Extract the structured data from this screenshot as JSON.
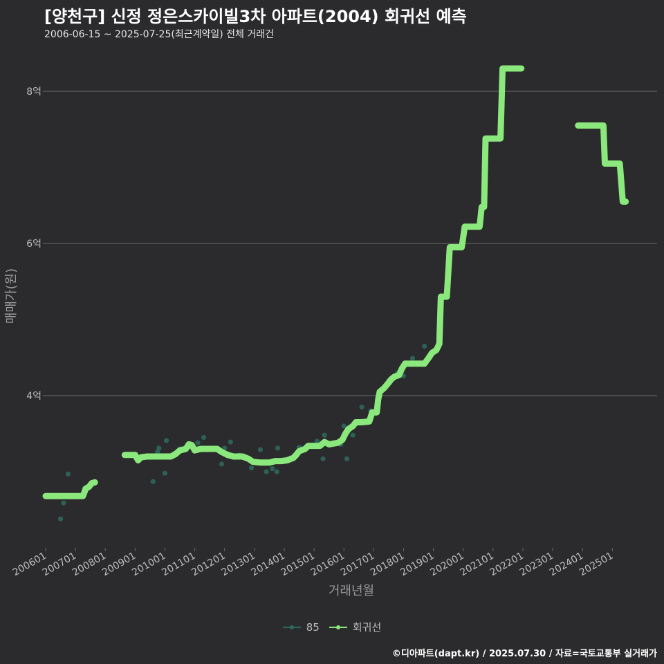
{
  "header": {
    "title": "[양천구] 신정 정은스카이빌3차 아파트(2004) 회귀선 예측",
    "subtitle": "2006-06-15 ~ 2025-07-25(최근계약일) 전체 거래건"
  },
  "footer": {
    "credit": "©디아파트(dapt.kr) / 2025.07.30 / 자료=국토교통부 실거래가"
  },
  "colors": {
    "background": "#2b2b2d",
    "grid": "#6b6b6b",
    "regression": "#8be87c",
    "points": "#2e6b5f",
    "axis_text": "#bdbdbd"
  },
  "chart_data": {
    "type": "line",
    "title": "[양천구] 신정 정은스카이빌3차 아파트(2004) 회귀선 예측",
    "xlabel": "거래년월",
    "ylabel": "매매가(원)",
    "xlim": [
      2006.0,
      2026.5
    ],
    "ylim": [
      2.0,
      8.6
    ],
    "y_ticks": [
      {
        "value": 4,
        "label": "4억"
      },
      {
        "value": 6,
        "label": "6억"
      },
      {
        "value": 8,
        "label": "8억"
      }
    ],
    "x_ticks": [
      {
        "value": 2006.0,
        "label": "200601"
      },
      {
        "value": 2007.0,
        "label": "200701"
      },
      {
        "value": 2008.0,
        "label": "200801"
      },
      {
        "value": 2009.0,
        "label": "200901"
      },
      {
        "value": 2010.0,
        "label": "201001"
      },
      {
        "value": 2011.0,
        "label": "201101"
      },
      {
        "value": 2012.0,
        "label": "201201"
      },
      {
        "value": 2013.0,
        "label": "201301"
      },
      {
        "value": 2014.0,
        "label": "201401"
      },
      {
        "value": 2015.0,
        "label": "201501"
      },
      {
        "value": 2016.0,
        "label": "201601"
      },
      {
        "value": 2017.0,
        "label": "201701"
      },
      {
        "value": 2018.0,
        "label": "201801"
      },
      {
        "value": 2019.0,
        "label": "201901"
      },
      {
        "value": 2020.0,
        "label": "202001"
      },
      {
        "value": 2021.0,
        "label": "202101"
      },
      {
        "value": 2022.0,
        "label": "202201"
      },
      {
        "value": 2023.0,
        "label": "202301"
      },
      {
        "value": 2024.0,
        "label": "202401"
      },
      {
        "value": 2025.0,
        "label": "202501"
      }
    ],
    "legend": [
      "85",
      "회귀선"
    ],
    "series": [
      {
        "name": "85",
        "kind": "scatter",
        "points": [
          [
            2006.5,
            2.38
          ],
          [
            2006.6,
            2.59
          ],
          [
            2006.75,
            2.97
          ],
          [
            2006.8,
            2.68
          ],
          [
            2007.3,
            2.78
          ],
          [
            2009.05,
            3.18
          ],
          [
            2009.1,
            3.15
          ],
          [
            2009.25,
            3.19
          ],
          [
            2009.6,
            2.87
          ],
          [
            2009.75,
            3.26
          ],
          [
            2009.8,
            3.31
          ],
          [
            2009.9,
            3.2
          ],
          [
            2010.0,
            2.98
          ],
          [
            2010.05,
            3.41
          ],
          [
            2010.3,
            3.24
          ],
          [
            2010.5,
            3.3
          ],
          [
            2010.7,
            3.3
          ],
          [
            2010.8,
            3.34
          ],
          [
            2011.1,
            3.38
          ],
          [
            2011.3,
            3.45
          ],
          [
            2011.5,
            3.3
          ],
          [
            2011.7,
            3.31
          ],
          [
            2011.9,
            3.1
          ],
          [
            2012.0,
            3.31
          ],
          [
            2012.1,
            3.24
          ],
          [
            2012.2,
            3.39
          ],
          [
            2012.5,
            3.22
          ],
          [
            2012.7,
            3.18
          ],
          [
            2012.9,
            3.05
          ],
          [
            2013.2,
            3.29
          ],
          [
            2013.4,
            3.0
          ],
          [
            2013.6,
            3.04
          ],
          [
            2013.75,
            3.0
          ],
          [
            2013.78,
            3.31
          ],
          [
            2013.85,
            3.14
          ],
          [
            2014.2,
            3.18
          ],
          [
            2014.5,
            3.32
          ],
          [
            2014.8,
            3.33
          ],
          [
            2015.1,
            3.4
          ],
          [
            2015.3,
            3.17
          ],
          [
            2015.35,
            3.48
          ],
          [
            2015.5,
            3.35
          ],
          [
            2015.7,
            3.38
          ],
          [
            2015.9,
            3.36
          ],
          [
            2016.0,
            3.6
          ],
          [
            2016.1,
            3.17
          ],
          [
            2016.3,
            3.48
          ],
          [
            2016.6,
            3.85
          ],
          [
            2016.9,
            3.8
          ],
          [
            2017.2,
            4.05
          ],
          [
            2017.5,
            4.2
          ],
          [
            2017.8,
            4.3
          ],
          [
            2018.0,
            4.26
          ],
          [
            2018.3,
            4.49
          ],
          [
            2018.7,
            4.65
          ],
          [
            2019.0,
            4.57
          ]
        ]
      },
      {
        "name": "회귀선",
        "kind": "line",
        "segments": [
          [
            [
              2006.0,
              2.68
            ],
            [
              2007.25,
              2.68
            ],
            [
              2007.35,
              2.78
            ],
            [
              2007.45,
              2.8
            ],
            [
              2007.55,
              2.85
            ],
            [
              2007.65,
              2.86
            ]
          ],
          [
            [
              2008.65,
              3.22
            ],
            [
              2009.0,
              3.22
            ],
            [
              2009.1,
              3.15
            ],
            [
              2009.2,
              3.19
            ],
            [
              2009.4,
              3.2
            ],
            [
              2009.8,
              3.2
            ],
            [
              2010.2,
              3.2
            ],
            [
              2010.35,
              3.23
            ],
            [
              2010.5,
              3.28
            ],
            [
              2010.7,
              3.3
            ],
            [
              2010.8,
              3.36
            ],
            [
              2010.9,
              3.35
            ],
            [
              2011.0,
              3.28
            ],
            [
              2011.2,
              3.3
            ],
            [
              2011.5,
              3.3
            ],
            [
              2011.75,
              3.3
            ],
            [
              2011.9,
              3.26
            ],
            [
              2012.1,
              3.22
            ],
            [
              2012.3,
              3.2
            ],
            [
              2012.6,
              3.2
            ],
            [
              2012.8,
              3.17
            ],
            [
              2012.95,
              3.13
            ],
            [
              2013.2,
              3.12
            ],
            [
              2013.5,
              3.12
            ],
            [
              2013.7,
              3.14
            ],
            [
              2013.9,
              3.14
            ],
            [
              2014.1,
              3.15
            ],
            [
              2014.3,
              3.18
            ],
            [
              2014.4,
              3.22
            ],
            [
              2014.5,
              3.27
            ],
            [
              2014.7,
              3.3
            ],
            [
              2014.8,
              3.34
            ],
            [
              2015.2,
              3.34
            ],
            [
              2015.35,
              3.39
            ],
            [
              2015.5,
              3.36
            ],
            [
              2015.8,
              3.38
            ],
            [
              2015.95,
              3.42
            ],
            [
              2016.05,
              3.5
            ],
            [
              2016.15,
              3.56
            ],
            [
              2016.3,
              3.6
            ],
            [
              2016.4,
              3.65
            ],
            [
              2016.6,
              3.65
            ],
            [
              2016.85,
              3.66
            ],
            [
              2016.9,
              3.72
            ],
            [
              2016.95,
              3.78
            ],
            [
              2017.1,
              3.78
            ],
            [
              2017.15,
              3.95
            ],
            [
              2017.2,
              4.05
            ],
            [
              2017.35,
              4.1
            ],
            [
              2017.5,
              4.17
            ],
            [
              2017.6,
              4.22
            ],
            [
              2017.7,
              4.25
            ],
            [
              2017.85,
              4.27
            ],
            [
              2017.95,
              4.36
            ],
            [
              2018.05,
              4.42
            ],
            [
              2018.3,
              4.42
            ],
            [
              2018.7,
              4.42
            ],
            [
              2018.85,
              4.5
            ],
            [
              2018.95,
              4.56
            ],
            [
              2019.1,
              4.6
            ],
            [
              2019.2,
              4.68
            ],
            [
              2019.25,
              5.3
            ],
            [
              2019.45,
              5.3
            ],
            [
              2019.55,
              5.95
            ],
            [
              2019.95,
              5.95
            ],
            [
              2020.05,
              6.22
            ],
            [
              2020.55,
              6.22
            ],
            [
              2020.62,
              6.48
            ],
            [
              2020.7,
              6.48
            ],
            [
              2020.75,
              7.38
            ],
            [
              2021.25,
              7.38
            ],
            [
              2021.32,
              8.3
            ],
            [
              2021.95,
              8.3
            ]
          ],
          [
            [
              2023.85,
              7.55
            ],
            [
              2024.7,
              7.55
            ],
            [
              2024.75,
              7.05
            ],
            [
              2025.25,
              7.05
            ],
            [
              2025.35,
              6.55
            ],
            [
              2025.45,
              6.55
            ]
          ]
        ]
      }
    ]
  }
}
